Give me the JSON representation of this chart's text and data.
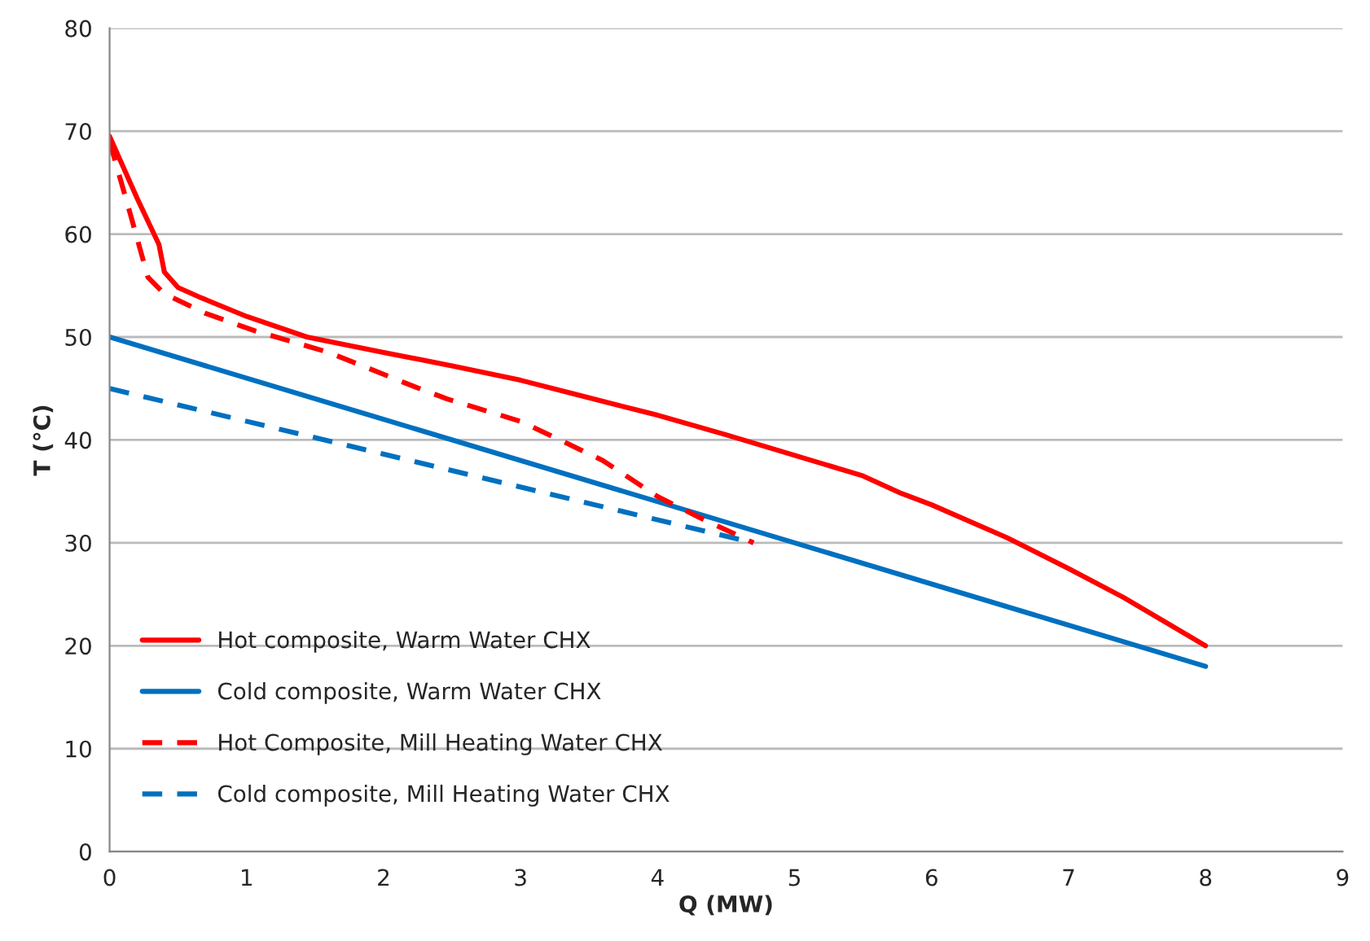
{
  "chart_data": {
    "type": "line",
    "xlabel": "Q (MW)",
    "ylabel": "T (°C)",
    "xlim": [
      0,
      9
    ],
    "xticks": [
      0,
      1,
      2,
      3,
      4,
      5,
      6,
      7,
      8,
      9
    ],
    "ylim": [
      0,
      80
    ],
    "yticks": [
      0,
      10,
      20,
      30,
      40,
      50,
      60,
      70,
      80
    ],
    "grid": "y",
    "legend": "bottom left",
    "marker": "none",
    "series": [
      {
        "name": "Hot composite, Warm Water CHX",
        "color": "#ff0000",
        "line_style": "solid",
        "x": [
          0,
          0.2,
          0.36,
          0.4,
          0.5,
          0.67,
          1,
          1.44,
          2,
          2.5,
          3,
          3.38,
          4,
          4.5,
          5,
          5.5,
          5.78,
          6,
          6.55,
          7,
          7.4,
          8.0
        ],
        "values": [
          69.5,
          63.5,
          59,
          56.3,
          54.8,
          53.8,
          52,
          50,
          48.5,
          47.2,
          45.8,
          44.5,
          42.4,
          40.5,
          38.5,
          36.5,
          34.8,
          33.7,
          30.5,
          27.5,
          24.7,
          20
        ]
      },
      {
        "name": "Cold composite, Warm Water CHX",
        "color": "#0070c0",
        "line_style": "solid",
        "x": [
          0,
          8.0
        ],
        "values": [
          50,
          18
        ]
      },
      {
        "name": "Hot Composite, Mill Heating Water CHX",
        "color": "#ff0000",
        "line_style": "dashed",
        "x": [
          0,
          0.15,
          0.28,
          0.4,
          0.7,
          1.06,
          1.6,
          2.22,
          2.46,
          3,
          3.24,
          3.6,
          4,
          4.3,
          4.7
        ],
        "values": [
          69,
          62,
          55.8,
          54.2,
          52.3,
          50.6,
          48.5,
          45.2,
          44,
          41.8,
          40.3,
          38,
          34.5,
          32.5,
          30
        ]
      },
      {
        "name": "Cold composite, Mill Heating Water CHX",
        "color": "#0070c0",
        "line_style": "dashed",
        "x": [
          0,
          4.7
        ],
        "values": [
          45,
          30
        ]
      }
    ]
  }
}
